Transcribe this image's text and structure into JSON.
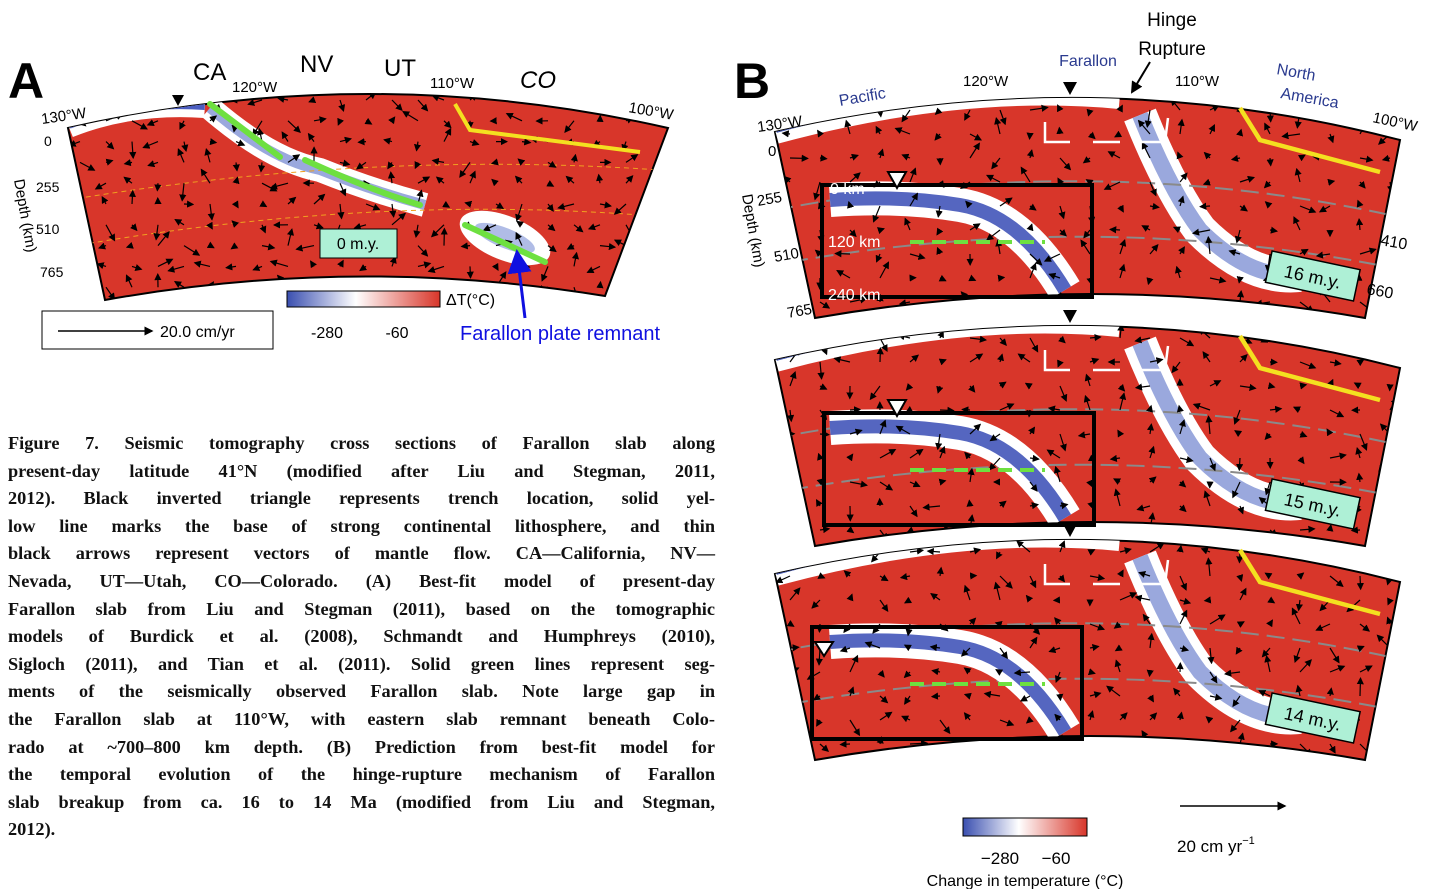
{
  "panel_a": {
    "label": "A",
    "states": [
      "CA",
      "NV",
      "UT",
      "CO"
    ],
    "longitudes": [
      "130°W",
      "120°W",
      "110°W",
      "100°W"
    ],
    "depths": [
      "0",
      "255",
      "510",
      "765"
    ],
    "depth_axis_label": "Depth (km)",
    "time_label": "0 m.y.",
    "colorbar": {
      "title": "ΔT(°C)",
      "ticks": [
        "-280",
        "-60"
      ]
    },
    "scale_label": "20.0 cm/yr",
    "annotation": "Farallon plate remnant"
  },
  "panel_b": {
    "label": "B",
    "hinge_label": [
      "Hinge",
      "Rupture"
    ],
    "plates": [
      "Farallon",
      "Pacific",
      "North",
      "America"
    ],
    "longitudes": [
      "120°W",
      "110°W",
      "130°W",
      "100°W"
    ],
    "depths": [
      "0",
      "255",
      "510",
      "765"
    ],
    "depth_axis_label": "Depth (km)",
    "discontinuities": [
      "410",
      "660"
    ],
    "inset_depths": [
      "0 km",
      "120 km",
      "240 km"
    ],
    "time_labels": [
      "16 m.y.",
      "15 m.y.",
      "14 m.y."
    ],
    "colorbar": {
      "ticks": [
        "−280",
        "−60"
      ],
      "title": "Change in temperature (°C)"
    },
    "scale_label": "20 cm yr",
    "scale_exponent": "−1"
  },
  "caption": [
    "Figure 7. Seismic tomography cross sections of Farallon slab along",
    "present-day latitude 41°N (modified after Liu and Stegman, 2011,",
    "2012). Black inverted triangle represents trench location, solid yel-",
    "low line marks the base of strong continental lithosphere, and thin",
    "black arrows represent vectors of mantle flow. CA—California, NV—",
    "Nevada, UT—Utah, CO—Colorado. (A) Best-fit model of present-day",
    "Farallon slab from Liu and Stegman (2011), based on the tomographic",
    "models of Burdick et al. (2008), Schmandt and Humphreys (2010),",
    "Sigloch (2011), and Tian et al. (2011). Solid green lines represent seg-",
    "ments of the seismically observed Farallon slab. Note large gap in",
    "the Farallon slab at 110°W, with eastern slab remnant beneath Colo-",
    "rado at ~700–800 km depth. (B) Prediction from best-fit model for",
    "the temporal evolution of the hinge-rupture mechanism of Farallon",
    "slab breakup from ca. 16 to 14 Ma (modified from Liu and Stegman,",
    "2012)."
  ]
}
